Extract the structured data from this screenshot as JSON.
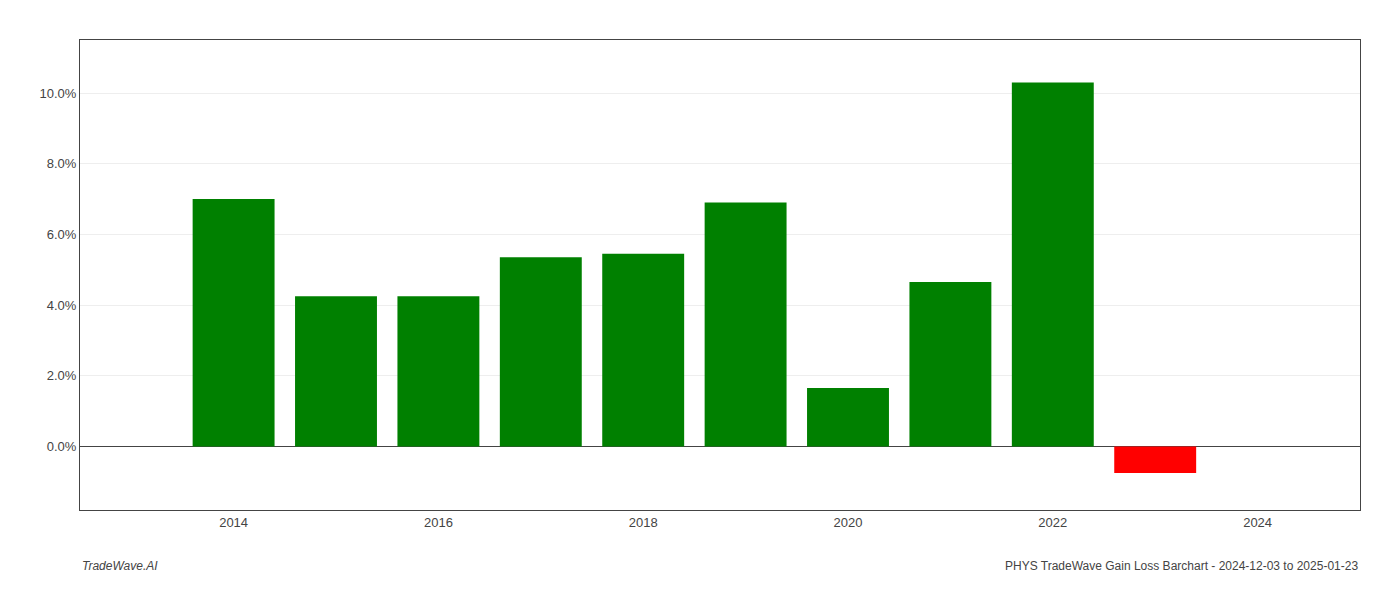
{
  "chart_data": {
    "type": "bar",
    "x": [
      2014,
      2015,
      2016,
      2017,
      2018,
      2019,
      2020,
      2021,
      2022,
      2023
    ],
    "values": [
      0.07,
      0.0425,
      0.0425,
      0.0535,
      0.0545,
      0.069,
      0.0165,
      0.0465,
      0.103,
      -0.0075
    ],
    "colors": [
      "#008000",
      "#008000",
      "#008000",
      "#008000",
      "#008000",
      "#008000",
      "#008000",
      "#008000",
      "#008000",
      "#ff0000"
    ],
    "xlim": [
      2012.5,
      2025.0
    ],
    "xticks": [
      2014,
      2016,
      2018,
      2020,
      2022,
      2024
    ],
    "ylim": [
      -0.018,
      0.115
    ],
    "yticks": [
      {
        "value": 0.0,
        "label": "0.0%"
      },
      {
        "value": 0.02,
        "label": "2.0%"
      },
      {
        "value": 0.04,
        "label": "4.0%"
      },
      {
        "value": 0.06,
        "label": "6.0%"
      },
      {
        "value": 0.08,
        "label": "8.0%"
      },
      {
        "value": 0.1,
        "label": "10.0%"
      }
    ],
    "grid": true,
    "annotations": [
      "TradeWave.AI",
      "PHYS TradeWave Gain Loss Barchart - 2024-12-03 to 2025-01-23"
    ]
  }
}
